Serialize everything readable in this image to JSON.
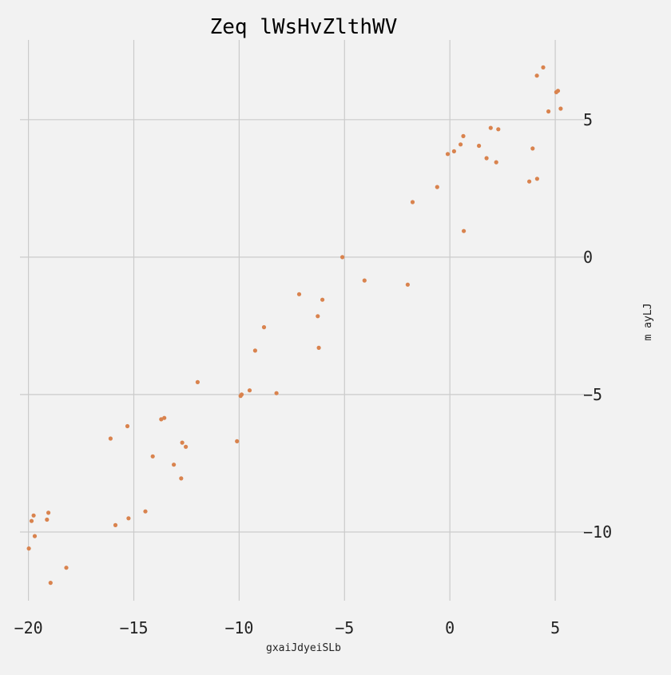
{
  "chart_data": {
    "type": "scatter",
    "title": "Zeq lWsHvZlthWV",
    "xlabel": "gxaiJdyeiSLb",
    "ylabel": "m ayLJ",
    "xlim": [
      -20.4,
      6.4
    ],
    "ylim": [
      -12.5,
      7.9
    ],
    "x_ticks": [
      -20,
      -15,
      -10,
      -5,
      0,
      5
    ],
    "y_ticks": [
      5,
      0,
      -5,
      -10
    ],
    "x_tick_labels": [
      "−20",
      "−15",
      "−10",
      "−5",
      "0",
      "5"
    ],
    "y_tick_labels": [
      "5",
      "0",
      "−5",
      "−10"
    ],
    "y_axis_side": "right",
    "grid": true,
    "marker_color": "#d9834e",
    "series": [
      {
        "x": [
          4.43,
          4.13,
          5.13,
          5.05,
          4.68,
          5.26,
          1.94,
          2.3,
          0.64,
          0.51,
          1.38,
          0.2,
          -0.1,
          3.93,
          1.74,
          2.2,
          4.14,
          3.77,
          -0.6,
          -1.77,
          0.66,
          -5.1,
          -4.05,
          -2.0,
          -7.15,
          -6.05,
          -6.27,
          -8.82,
          -9.24,
          -6.22,
          -11.97,
          -9.5,
          -9.88,
          -9.93,
          -8.23,
          -13.55,
          -13.7,
          -15.3,
          -16.1,
          -12.7,
          -12.53,
          -10.1,
          -14.1,
          -13.1,
          -12.75,
          -19.75,
          -19.85,
          -19.05,
          -19.12,
          -14.45,
          -15.25,
          -15.87,
          -19.7,
          -19.98,
          -18.2,
          -18.95
        ],
        "y": [
          6.9,
          6.6,
          6.05,
          6.0,
          5.3,
          5.4,
          4.7,
          4.65,
          4.4,
          4.1,
          4.05,
          3.85,
          3.75,
          3.95,
          3.6,
          3.45,
          2.85,
          2.75,
          2.55,
          2.0,
          0.95,
          0.0,
          -0.85,
          -1.0,
          -1.35,
          -1.55,
          -2.15,
          -2.55,
          -3.4,
          -3.3,
          -4.55,
          -4.85,
          -5.0,
          -5.05,
          -4.95,
          -5.85,
          -5.9,
          -6.15,
          -6.6,
          -6.75,
          -6.9,
          -6.7,
          -7.25,
          -7.55,
          -8.05,
          -9.4,
          -9.6,
          -9.3,
          -9.55,
          -9.25,
          -9.5,
          -9.75,
          -10.15,
          -10.6,
          -11.3,
          -11.85
        ]
      }
    ]
  }
}
